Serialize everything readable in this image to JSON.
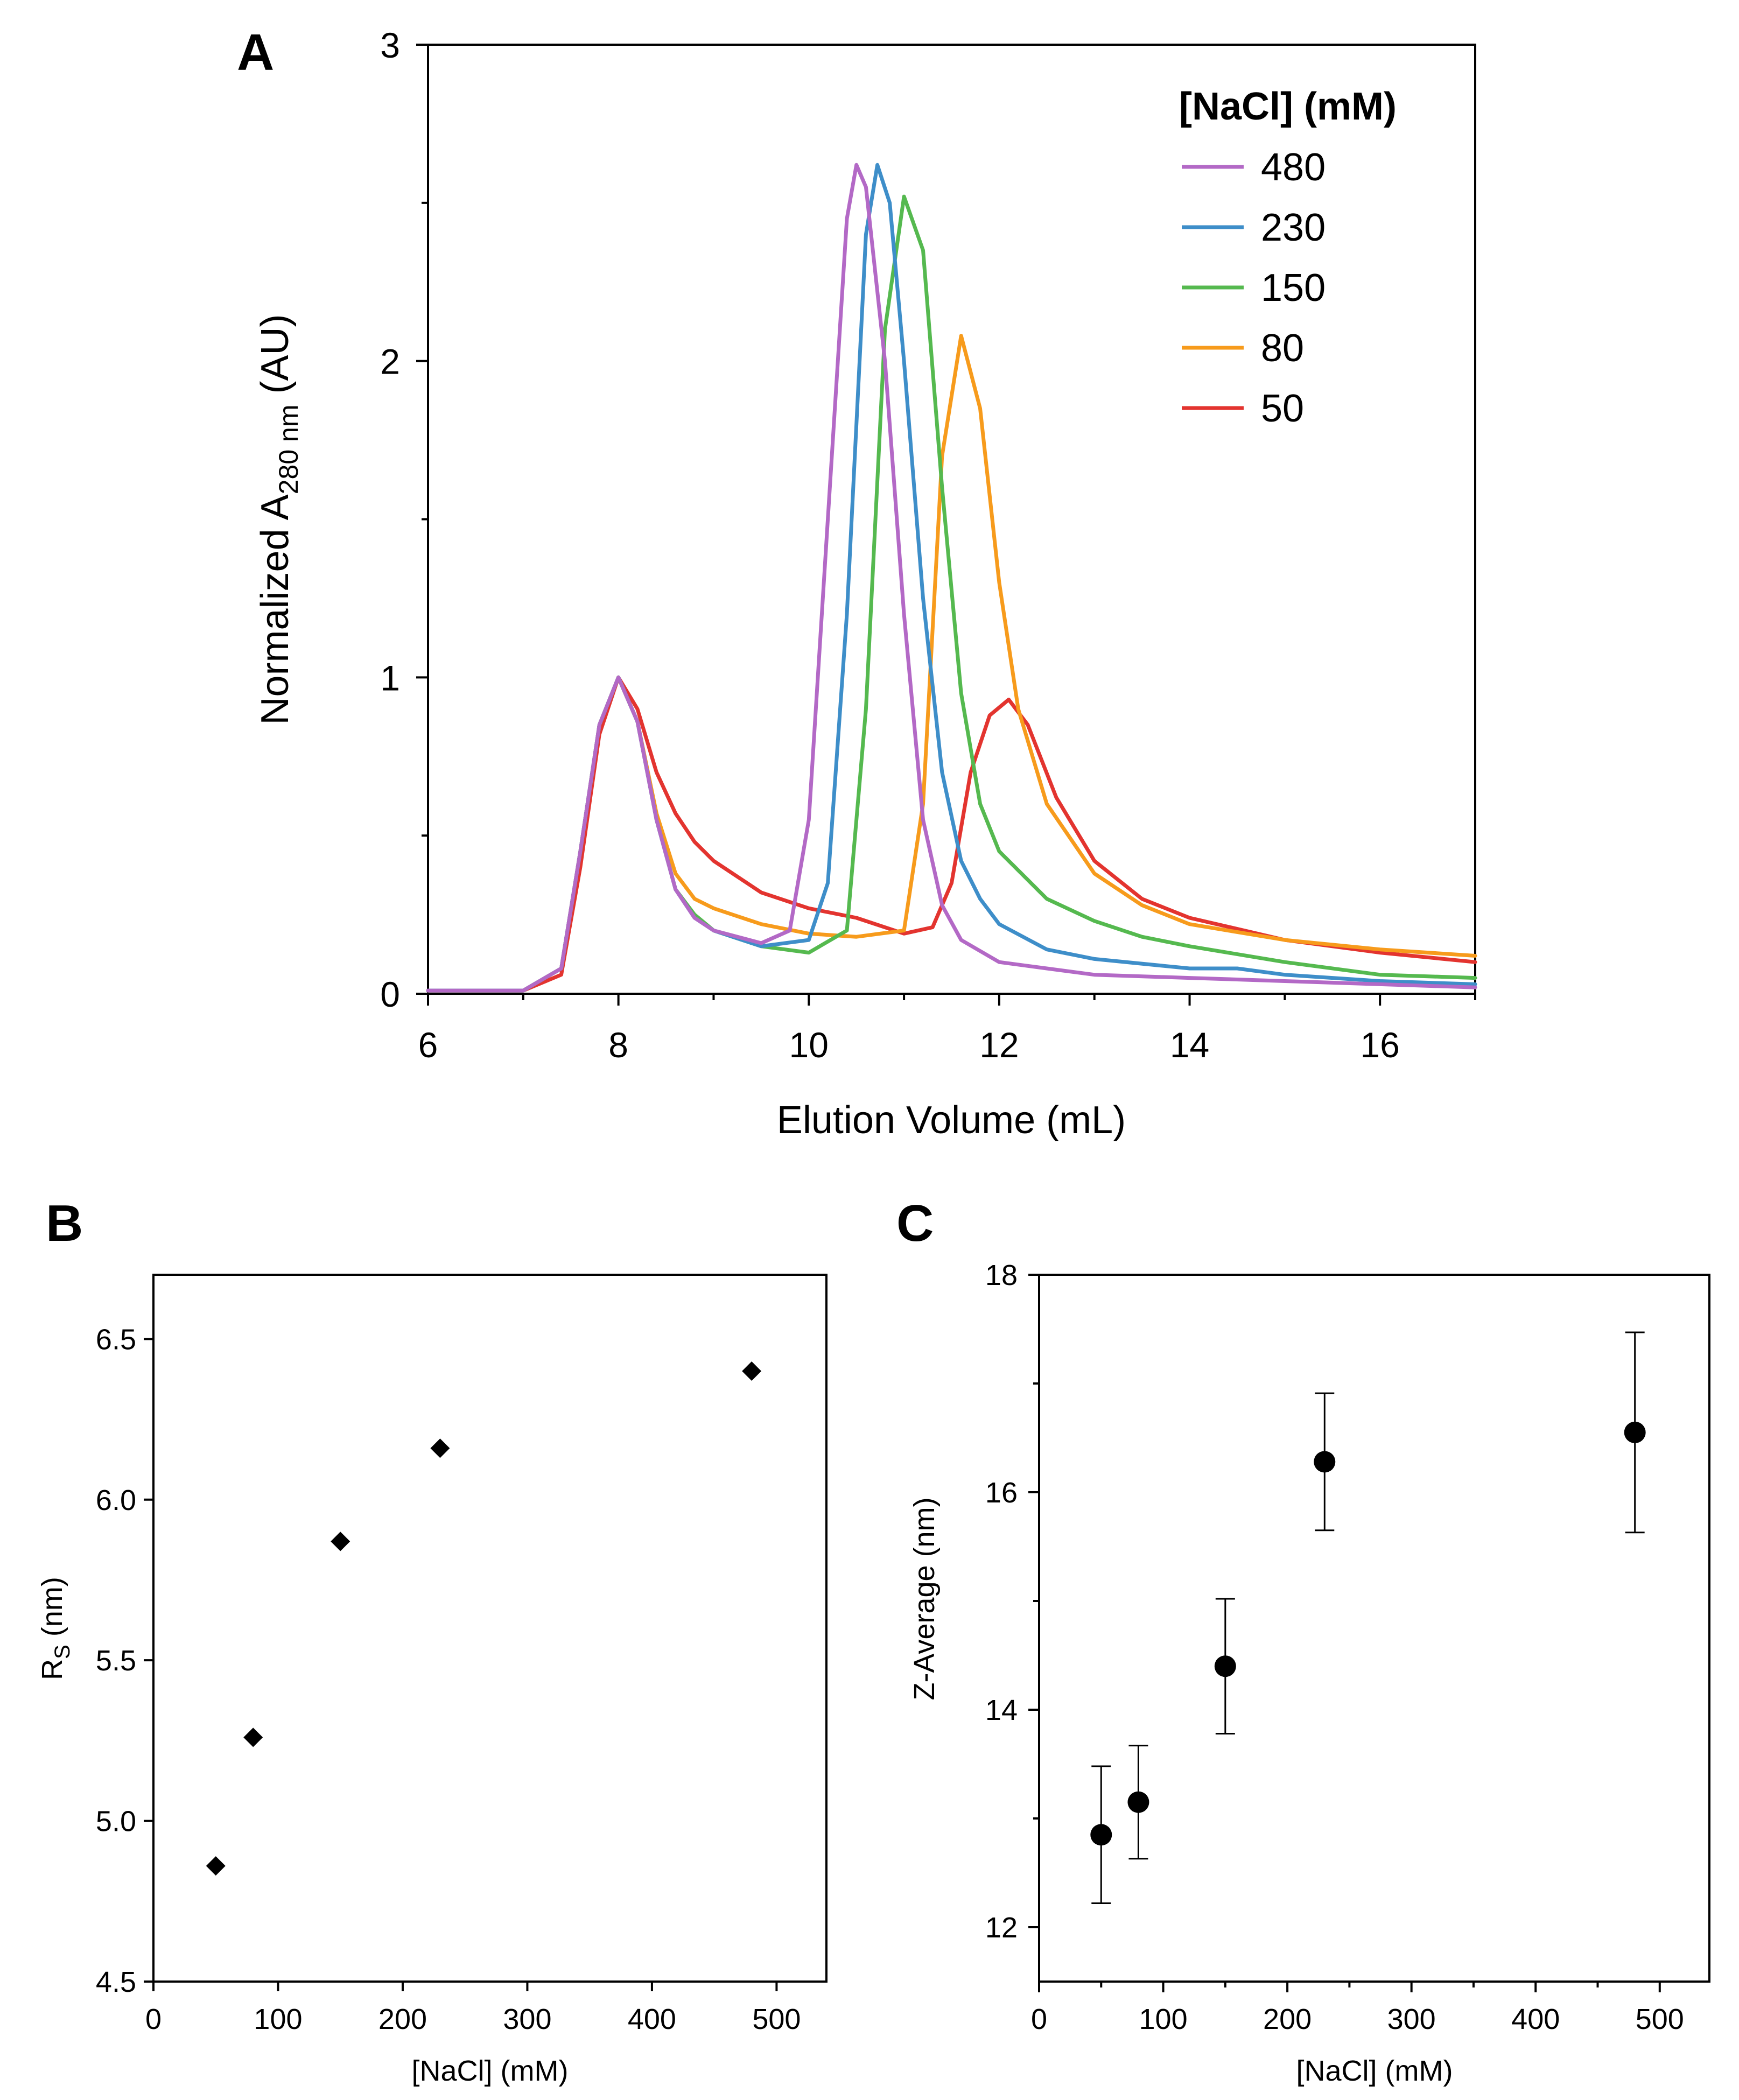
{
  "colors": {
    "480": "#b369c6",
    "230": "#3e8ec9",
    "150": "#55b94f",
    "80": "#f79b1c",
    "50": "#e3342f"
  },
  "chart_data": [
    {
      "panel": "A",
      "type": "line",
      "title": "",
      "xlabel": "Elution Volume (mL)",
      "ylabel": "Normalized A",
      "ylabel_sub": "280 nm",
      "ylabel_suffix": " (AU)",
      "xlim": [
        6,
        17
      ],
      "ylim": [
        0,
        3
      ],
      "xticks": [
        6,
        8,
        10,
        12,
        14,
        16
      ],
      "xticks_minor": [
        7,
        9,
        11,
        13,
        15,
        17
      ],
      "yticks": [
        0,
        1,
        2,
        3
      ],
      "yticks_minor": [
        0.5,
        1.5,
        2.5
      ],
      "legend_title": "[NaCl] (mM)",
      "legend_position": "top-right",
      "series": [
        {
          "name": "480",
          "x": [
            6,
            7,
            7.4,
            7.6,
            7.8,
            8.0,
            8.2,
            8.4,
            8.6,
            8.8,
            9.0,
            9.5,
            9.8,
            10.0,
            10.2,
            10.4,
            10.5,
            10.6,
            10.8,
            11.0,
            11.2,
            11.4,
            11.6,
            12.0,
            12.5,
            13.0,
            14.0,
            15.0,
            16.0,
            17.0
          ],
          "values": [
            0.01,
            0.01,
            0.08,
            0.45,
            0.85,
            1.0,
            0.86,
            0.55,
            0.33,
            0.24,
            0.2,
            0.16,
            0.2,
            0.55,
            1.5,
            2.45,
            2.62,
            2.55,
            2.0,
            1.2,
            0.55,
            0.28,
            0.17,
            0.1,
            0.08,
            0.06,
            0.05,
            0.04,
            0.03,
            0.02
          ]
        },
        {
          "name": "230",
          "x": [
            6,
            7,
            7.4,
            7.6,
            7.8,
            8.0,
            8.2,
            8.4,
            8.6,
            8.8,
            9.0,
            9.5,
            10.0,
            10.2,
            10.4,
            10.6,
            10.72,
            10.85,
            11.0,
            11.2,
            11.4,
            11.6,
            11.8,
            12.0,
            12.5,
            13.0,
            14.0,
            14.5,
            15.0,
            16.0,
            17.0
          ],
          "values": [
            0.01,
            0.01,
            0.08,
            0.45,
            0.85,
            1.0,
            0.86,
            0.55,
            0.33,
            0.24,
            0.2,
            0.15,
            0.17,
            0.35,
            1.2,
            2.4,
            2.62,
            2.5,
            2.0,
            1.25,
            0.7,
            0.42,
            0.3,
            0.22,
            0.14,
            0.11,
            0.08,
            0.08,
            0.06,
            0.04,
            0.03
          ]
        },
        {
          "name": "150",
          "x": [
            6,
            7,
            7.4,
            7.6,
            7.8,
            8.0,
            8.2,
            8.4,
            8.6,
            8.8,
            9.0,
            9.5,
            10.0,
            10.4,
            10.6,
            10.8,
            11.0,
            11.2,
            11.4,
            11.6,
            11.8,
            12.0,
            12.5,
            13.0,
            13.5,
            14.0,
            15.0,
            16.0,
            17.0
          ],
          "values": [
            0.01,
            0.01,
            0.08,
            0.45,
            0.85,
            1.0,
            0.86,
            0.55,
            0.33,
            0.25,
            0.2,
            0.15,
            0.13,
            0.2,
            0.9,
            2.1,
            2.52,
            2.35,
            1.6,
            0.95,
            0.6,
            0.45,
            0.3,
            0.23,
            0.18,
            0.15,
            0.1,
            0.06,
            0.05
          ]
        },
        {
          "name": "80",
          "x": [
            6,
            7,
            7.4,
            7.6,
            7.8,
            8.0,
            8.2,
            8.4,
            8.6,
            8.8,
            9.0,
            9.5,
            10.0,
            10.5,
            11.0,
            11.2,
            11.4,
            11.6,
            11.8,
            12.0,
            12.2,
            12.5,
            13.0,
            13.5,
            14.0,
            15.0,
            16.0,
            17.0
          ],
          "values": [
            0.01,
            0.01,
            0.08,
            0.45,
            0.85,
            1.0,
            0.86,
            0.57,
            0.38,
            0.3,
            0.27,
            0.22,
            0.19,
            0.18,
            0.2,
            0.6,
            1.7,
            2.08,
            1.85,
            1.3,
            0.9,
            0.6,
            0.38,
            0.28,
            0.22,
            0.17,
            0.14,
            0.12
          ]
        },
        {
          "name": "50",
          "x": [
            6,
            7,
            7.4,
            7.6,
            7.8,
            8.0,
            8.2,
            8.4,
            8.6,
            8.8,
            9.0,
            9.5,
            10.0,
            10.5,
            11.0,
            11.3,
            11.5,
            11.7,
            11.9,
            12.1,
            12.3,
            12.6,
            13.0,
            13.5,
            14.0,
            15.0,
            16.0,
            17.0
          ],
          "values": [
            0.01,
            0.01,
            0.06,
            0.4,
            0.82,
            1.0,
            0.9,
            0.7,
            0.57,
            0.48,
            0.42,
            0.32,
            0.27,
            0.24,
            0.19,
            0.21,
            0.35,
            0.7,
            0.88,
            0.93,
            0.85,
            0.62,
            0.42,
            0.3,
            0.24,
            0.17,
            0.13,
            0.1
          ]
        }
      ]
    },
    {
      "panel": "B",
      "type": "scatter",
      "xlabel": "[NaCl] (mM)",
      "ylabel": "R",
      "ylabel_sub": "S",
      "ylabel_suffix": " (nm)",
      "xlim": [
        0,
        540
      ],
      "ylim": [
        4.5,
        6.7
      ],
      "xticks": [
        0,
        100,
        200,
        300,
        400,
        500
      ],
      "xtick_labels": [
        "0",
        "100",
        "200",
        "300",
        "400",
        "500"
      ],
      "yticks": [
        4.5,
        5.0,
        5.5,
        6.0,
        6.5
      ],
      "ytick_labels": [
        "4.5",
        "5.0",
        "5.5",
        "6.0",
        "6.5"
      ],
      "marker": "diamond",
      "x": [
        50,
        80,
        150,
        230,
        480
      ],
      "values": [
        4.86,
        5.26,
        5.87,
        6.16,
        6.4
      ]
    },
    {
      "panel": "C",
      "type": "scatter",
      "xlabel": "[NaCl] (mM)",
      "ylabel": "Z-Average (nm)",
      "xlim": [
        0,
        540
      ],
      "ylim": [
        11.5,
        18
      ],
      "xticks": [
        0,
        100,
        200,
        300,
        400,
        500
      ],
      "xtick_labels": [
        "0",
        "100",
        "200",
        "300",
        "400",
        "500"
      ],
      "xticks_minor": [
        50,
        150,
        250,
        350,
        450
      ],
      "yticks": [
        12,
        14,
        16,
        18
      ],
      "ytick_labels": [
        "12",
        "14",
        "16",
        "18"
      ],
      "yticks_minor": [
        13,
        15,
        17
      ],
      "marker": "circle",
      "x": [
        50,
        80,
        150,
        230,
        480
      ],
      "values": [
        12.85,
        13.15,
        14.4,
        16.28,
        16.55
      ],
      "error": [
        0.63,
        0.52,
        0.62,
        0.63,
        0.92
      ]
    }
  ]
}
